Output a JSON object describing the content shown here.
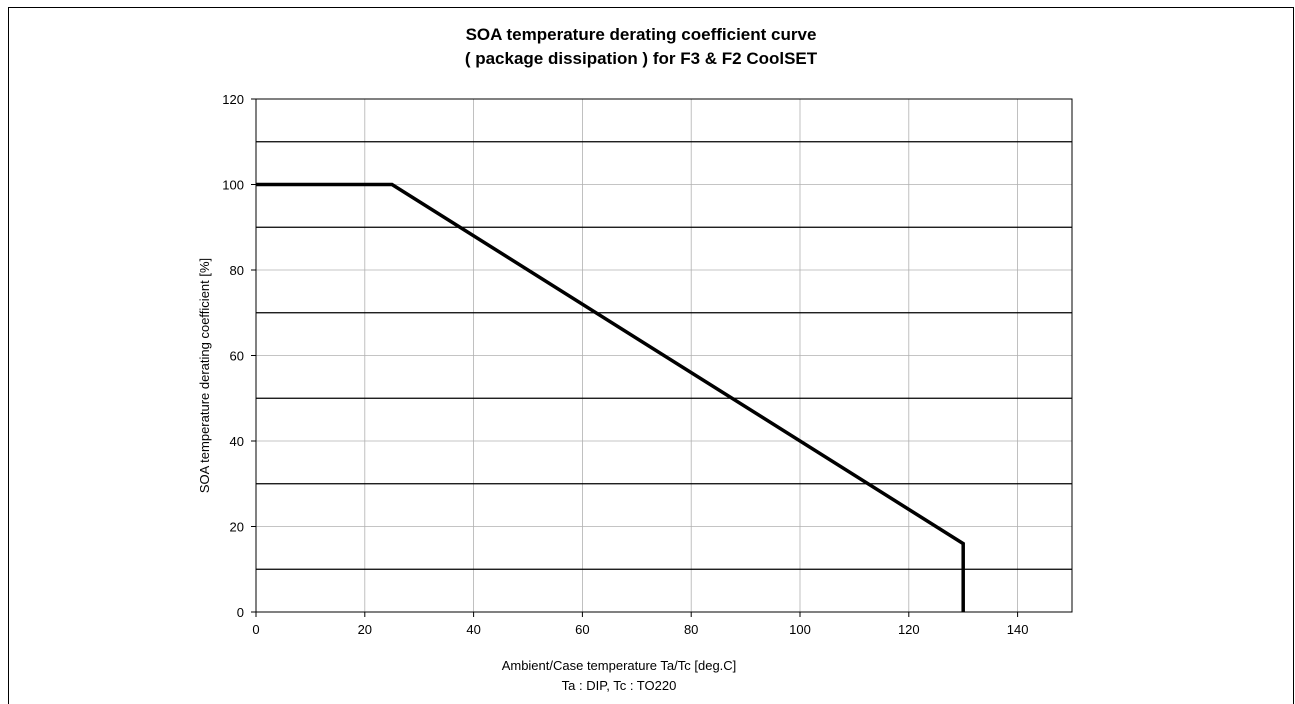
{
  "chart_data": {
    "type": "line",
    "title": "SOA temperature derating coefficient curve",
    "subtitle": "( package dissipation ) for F3 & F2 CoolSET",
    "xlabel": "Ambient/Case temperature Ta/Tc [deg.C]",
    "xlabel2": "Ta : DIP, Tc : TO220",
    "ylabel": "SOA temperature derating coefficient [%]",
    "xlim": [
      0,
      150
    ],
    "ylim": [
      0,
      120
    ],
    "xticks": [
      0,
      20,
      40,
      60,
      80,
      100,
      120,
      140
    ],
    "yticks": [
      0,
      20,
      40,
      60,
      80,
      100,
      120
    ],
    "major_grid_y": [
      10,
      30,
      50,
      70,
      90,
      110
    ],
    "grid": true,
    "series": [
      {
        "x": [
          0,
          25,
          130,
          130
        ],
        "y": [
          100,
          100,
          16,
          0
        ]
      }
    ]
  }
}
